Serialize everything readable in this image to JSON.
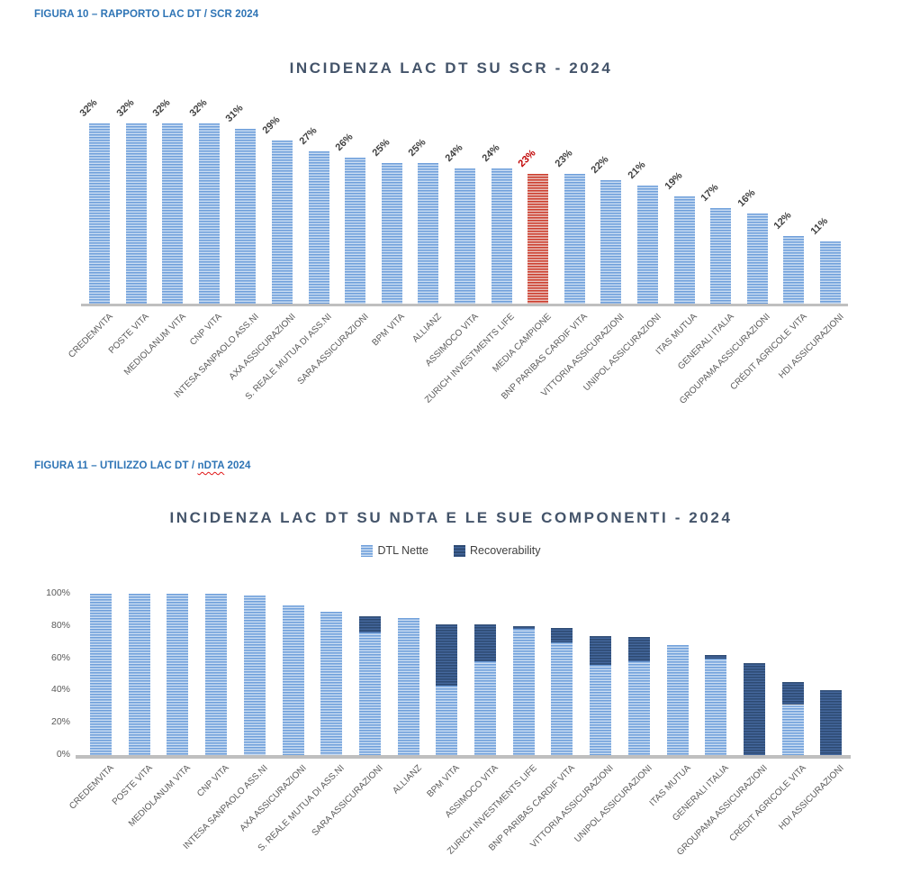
{
  "document": {
    "figure10_caption": "FIGURA 10 – RAPPORTO LAC DT / SCR 2024",
    "figure11": {
      "prefix": "FIGURA 11 – UTILIZZO LAC DT / ",
      "misspelled_word": "nDTA",
      "suffix": " 2024"
    }
  },
  "colors": {
    "caption_blue": "#2E74B5",
    "title_slate": "#44546A",
    "bar_light_stripe": "#6D9EDA",
    "bar_light_fill": "#C9DCF2",
    "bar_red_stripe": "#CC3B2B",
    "bar_red_fill": "#E9C0BB",
    "bar_dark_stripe": "#2D4A72",
    "bar_dark_fill": "#44679C",
    "data_label": "#404040",
    "data_label_highlight": "#C00000",
    "axis_text": "#595959",
    "baseline_gray": "#BFBFBF"
  },
  "chart_data": [
    {
      "type": "bar",
      "title": "INCIDENZA LAC DT SU SCR - 2024",
      "categories": [
        "CREDEMVITA",
        "POSTE VITA",
        "MEDIOLANUM VITA",
        "CNP VITA",
        "INTESA SANPAOLO ASS.NI",
        "AXA ASSICURAZIONI",
        "S. REALE MUTUA DI ASS.NI",
        "SARA ASSICURAZIONI",
        "BPM VITA",
        "ALLIANZ",
        "ASSIMOCO VITA",
        "ZURICH INVESTMENTS LIFE",
        "MEDIA CAMPIONE",
        "BNP PARIBAS CARDIF VITA",
        "VITTORIA ASSICURAZIONI",
        "UNIPOL ASSICURAZIONI",
        "ITAS MUTUA",
        "GENERALI ITALIA",
        "GROUPAMA ASSICURAZIONI",
        "CRÉDIT AGRICOLE VITA",
        "HDI ASSICURAZIONI"
      ],
      "values": [
        32,
        32,
        32,
        32,
        31,
        29,
        27,
        26,
        25,
        25,
        24,
        24,
        23,
        23,
        22,
        21,
        19,
        17,
        16,
        12,
        11
      ],
      "data_labels": [
        "32%",
        "32%",
        "32%",
        "32%",
        "31%",
        "29%",
        "27%",
        "26%",
        "25%",
        "25%",
        "24%",
        "24%",
        "23%",
        "23%",
        "22%",
        "21%",
        "19%",
        "17%",
        "16%",
        "12%",
        "11%"
      ],
      "highlight_index": 12,
      "highlight_category": "MEDIA CAMPIONE",
      "xlabel": "",
      "ylabel": "",
      "ylim": [
        0,
        35
      ],
      "grid": false,
      "legend_position": "none"
    },
    {
      "type": "bar",
      "stacked": true,
      "title": "INCIDENZA LAC DT SU NDTA E LE SUE COMPONENTI - 2024",
      "categories": [
        "CREDEMVITA",
        "POSTE VITA",
        "MEDIOLANUM VITA",
        "CNP VITA",
        "INTESA SANPAOLO ASS.NI",
        "AXA ASSICURAZIONI",
        "S. REALE MUTUA DI ASS.NI",
        "SARA ASSICURAZIONI",
        "ALLIANZ",
        "BPM VITA",
        "ASSIMOCO VITA",
        "ZURICH INVESTMENTS LIFE",
        "BNP PARIBAS CARDIF VITA",
        "VITTORIA ASSICURAZIONI",
        "UNIPOL ASSICURAZIONI",
        "ITAS MUTUA",
        "GENERALI ITALIA",
        "GROUPAMA ASSICURAZIONI",
        "CRÉDIT AGRICOLE VITA",
        "HDI ASSICURAZIONI"
      ],
      "series": [
        {
          "name": "DTL Nette",
          "values": [
            100,
            100,
            100,
            100,
            99,
            93,
            89,
            76,
            85,
            43,
            58,
            78,
            70,
            56,
            58,
            68,
            60,
            0,
            31,
            0
          ]
        },
        {
          "name": "Recoverability",
          "values": [
            0,
            0,
            0,
            0,
            0,
            0,
            0,
            10,
            0,
            38,
            23,
            2,
            9,
            18,
            15,
            0,
            2,
            57,
            14,
            40
          ]
        }
      ],
      "totals": [
        100,
        100,
        100,
        100,
        99,
        93,
        89,
        86,
        85,
        81,
        81,
        80,
        79,
        74,
        73,
        68,
        62,
        57,
        45,
        40
      ],
      "ytick_values": [
        0,
        20,
        40,
        60,
        80,
        100
      ],
      "ytick_labels": [
        "0%",
        "20%",
        "40%",
        "60%",
        "80%",
        "100%"
      ],
      "xlabel": "",
      "ylabel": "",
      "ylim": [
        0,
        100
      ],
      "grid": false,
      "legend_position": "top"
    }
  ]
}
